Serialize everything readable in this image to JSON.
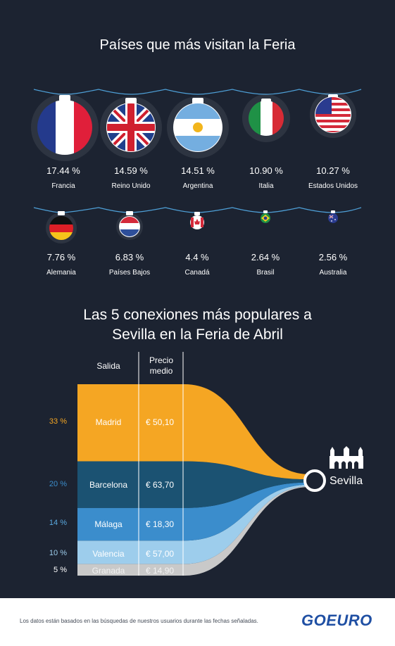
{
  "titles": {
    "countries": "Países que más visitan la Feria",
    "routes_line1": "Las 5 conexiones más populares a",
    "routes_line2": "Sevilla en la Feria de Abril"
  },
  "countries": [
    {
      "name": "Francia",
      "pct": "17.44 %",
      "flag": "france-flag-icon"
    },
    {
      "name": "Reino Unido",
      "pct": "14.59 %",
      "flag": "uk-flag-icon"
    },
    {
      "name": "Argentina",
      "pct": "14.51 %",
      "flag": "argentina-flag-icon"
    },
    {
      "name": "Italia",
      "pct": "10.90 %",
      "flag": "italy-flag-icon"
    },
    {
      "name": "Estados Unidos",
      "pct": "10.27 %",
      "flag": "usa-flag-icon"
    },
    {
      "name": "Alemania",
      "pct": "7.76 %",
      "flag": "germany-flag-icon"
    },
    {
      "name": "Países Bajos",
      "pct": "6.83 %",
      "flag": "netherlands-flag-icon"
    },
    {
      "name": "Canadá",
      "pct": "4.4 %",
      "flag": "canada-flag-icon"
    },
    {
      "name": "Brasil",
      "pct": "2.64 %",
      "flag": "brazil-flag-icon"
    },
    {
      "name": "Australia",
      "pct": "2.56 %",
      "flag": "australia-flag-icon"
    }
  ],
  "table_headers": {
    "origin": "Salida",
    "price_line1": "Precio",
    "price_line2": "medio"
  },
  "destination": {
    "name": "Sevilla",
    "icon": "building-icon"
  },
  "footer": {
    "note": "Los datos están basados en las búsquedas de nuestros usuarios durante las fechas señaladas.",
    "logo": "GOEURO"
  },
  "colors": {
    "background": "#1c2331",
    "madrid": "#f5a623",
    "barcelona": "#1b5272",
    "malaga": "#3b8dcc",
    "valencia": "#9dcdec",
    "granada": "#c9c9c9"
  },
  "chart_data": {
    "type": "table",
    "title": "Las 5 conexiones más populares a Sevilla en la Feria de Abril",
    "columns": [
      "Salida",
      "Precio medio"
    ],
    "rows": [
      {
        "origin": "Madrid",
        "share": 33,
        "share_label": "33 %",
        "price": "€ 50,10"
      },
      {
        "origin": "Barcelona",
        "share": 20,
        "share_label": "20 %",
        "price": "€ 63,70"
      },
      {
        "origin": "Málaga",
        "share": 14,
        "share_label": "14 %",
        "price": "€ 18,30"
      },
      {
        "origin": "Valencia",
        "share": 10,
        "share_label": "10 %",
        "price": "€ 57,00"
      },
      {
        "origin": "Granada",
        "share": 5,
        "share_label": "5 %",
        "price": "€ 14,90"
      }
    ],
    "destination": "Sevilla"
  }
}
